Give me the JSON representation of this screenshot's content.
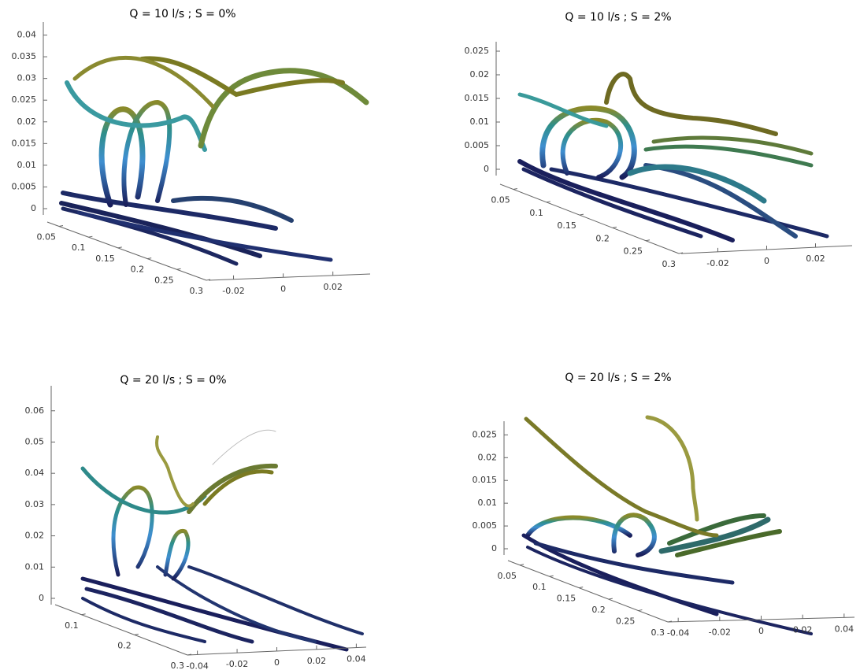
{
  "chart_data": [
    {
      "type": "streamtube",
      "title": "Q = 10 l/s ; S = 0%",
      "zlim": [
        0,
        0.043
      ],
      "zticks": [
        0,
        0.005,
        0.01,
        0.015,
        0.02,
        0.025,
        0.03,
        0.035,
        0.04
      ],
      "xlim": [
        0.03,
        0.3
      ],
      "xticks": [
        0.05,
        0.1,
        0.15,
        0.2,
        0.25,
        0.3
      ],
      "ylim": [
        -0.03,
        0.035
      ],
      "yticks": [
        -0.02,
        0,
        0.02
      ]
    },
    {
      "type": "streamtube",
      "title": "Q = 10 l/s ; S = 2%",
      "zlim": [
        0,
        0.027
      ],
      "zticks": [
        0,
        0.005,
        0.01,
        0.015,
        0.02,
        0.025
      ],
      "xlim": [
        0.03,
        0.3
      ],
      "xticks": [
        0.05,
        0.1,
        0.15,
        0.2,
        0.25,
        0.3
      ],
      "ylim": [
        -0.035,
        0.035
      ],
      "yticks": [
        -0.02,
        0,
        0.02
      ]
    },
    {
      "type": "streamtube",
      "title": "Q = 20 l/s ; S = 0%",
      "zlim": [
        0,
        0.068
      ],
      "zticks": [
        0,
        0.01,
        0.02,
        0.03,
        0.04,
        0.05,
        0.06
      ],
      "xlim": [
        0.05,
        0.3
      ],
      "xticks": [
        0.1,
        0.2,
        0.3
      ],
      "ylim": [
        -0.045,
        0.045
      ],
      "yticks": [
        -0.04,
        -0.02,
        0,
        0.02,
        0.04
      ]
    },
    {
      "type": "streamtube",
      "title": "Q = 20 l/s ; S = 2%",
      "zlim": [
        0,
        0.028
      ],
      "zticks": [
        0,
        0.005,
        0.01,
        0.015,
        0.02,
        0.025
      ],
      "xlim": [
        0.03,
        0.3
      ],
      "xticks": [
        0.05,
        0.1,
        0.15,
        0.2,
        0.25,
        0.3
      ],
      "ylim": [
        -0.045,
        0.045
      ],
      "yticks": [
        -0.04,
        -0.02,
        0,
        0.02,
        0.04
      ]
    }
  ]
}
